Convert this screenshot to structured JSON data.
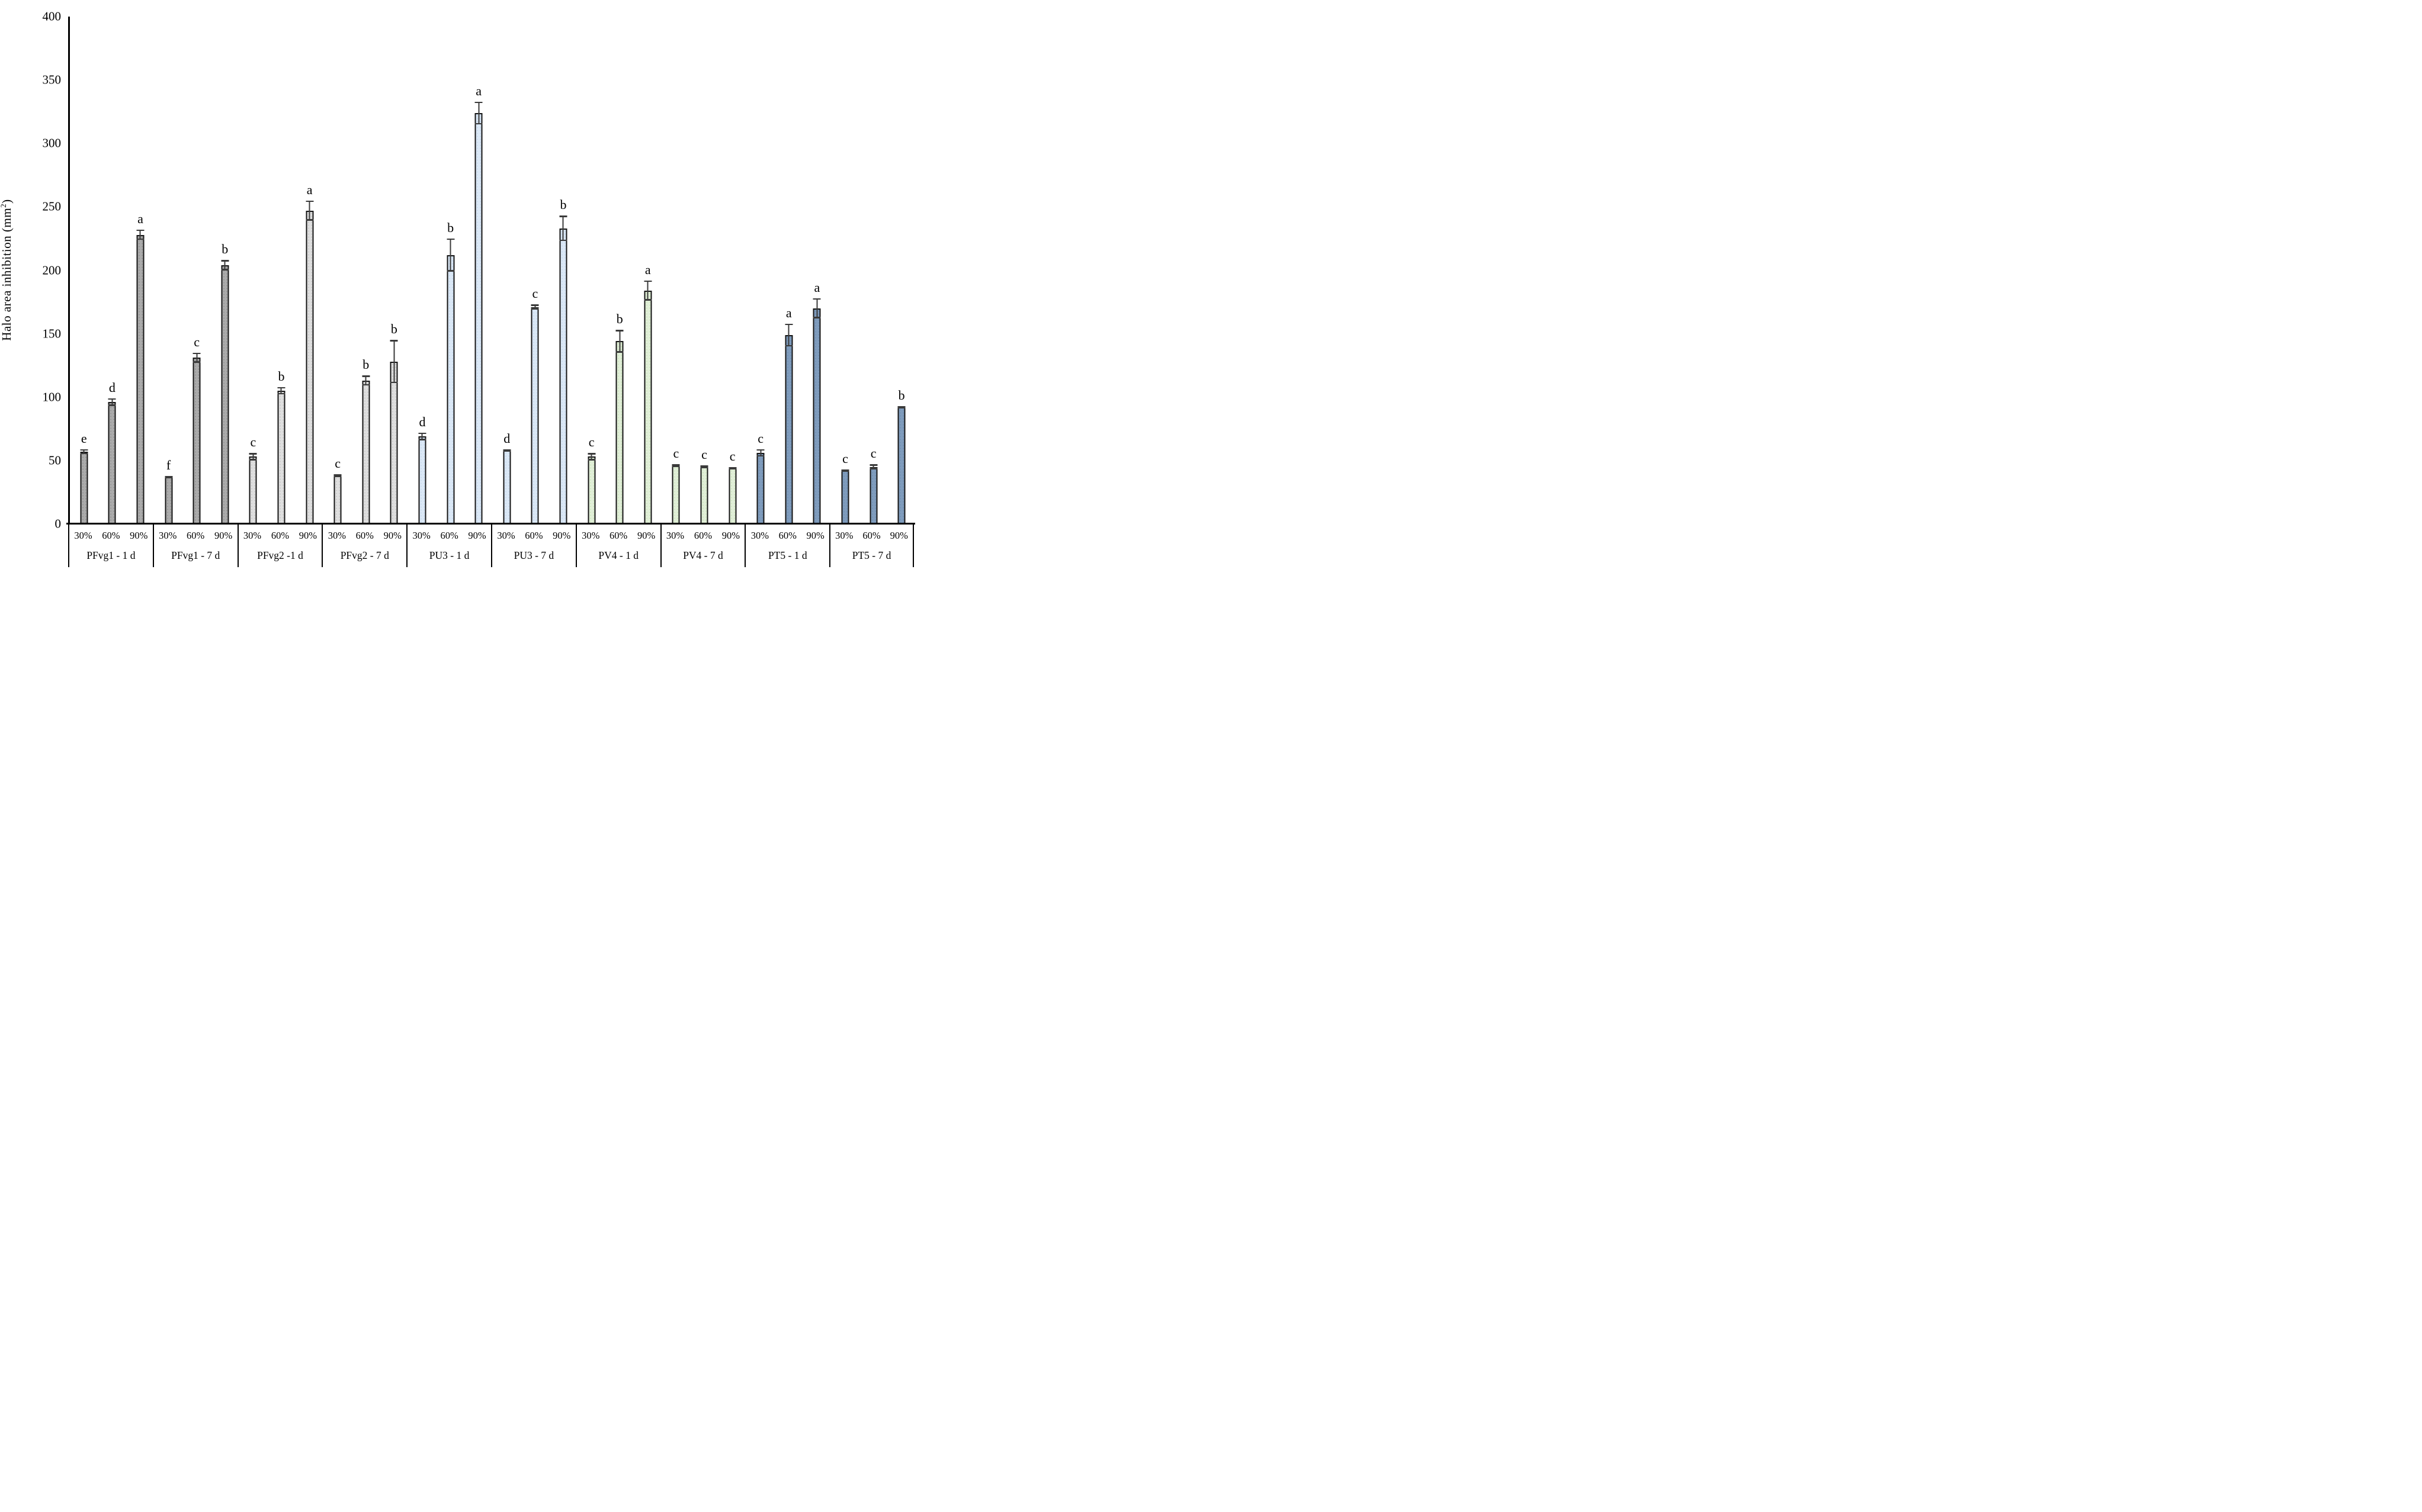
{
  "chart_data": {
    "type": "bar",
    "title": "",
    "xlabel": "",
    "ylabel": "Halo area inhibition (mm²)",
    "ylim": [
      0,
      400
    ],
    "yticks": [
      0,
      50,
      100,
      150,
      200,
      250,
      300,
      350,
      400
    ],
    "grid": false,
    "legend_position": "none",
    "concentration_labels": [
      "30%",
      "60%",
      "90%"
    ],
    "groups": [
      {
        "label": "PFvg1 - 1 d",
        "family": "PFvg1",
        "bars": [
          {
            "concentration": "30%",
            "value": 57,
            "error": 2,
            "letter": "e"
          },
          {
            "concentration": "60%",
            "value": 96,
            "error": 3,
            "letter": "d"
          },
          {
            "concentration": "90%",
            "value": 228,
            "error": 4,
            "letter": "a"
          }
        ]
      },
      {
        "label": "PFvg1 - 7 d",
        "family": "PFvg1",
        "bars": [
          {
            "concentration": "30%",
            "value": 37,
            "error": 1,
            "letter": "f"
          },
          {
            "concentration": "60%",
            "value": 131,
            "error": 4,
            "letter": "c"
          },
          {
            "concentration": "90%",
            "value": 204,
            "error": 4,
            "letter": "b"
          }
        ]
      },
      {
        "label": "PFvg2 -1 d",
        "family": "PFvg2",
        "bars": [
          {
            "concentration": "30%",
            "value": 53,
            "error": 3,
            "letter": "c"
          },
          {
            "concentration": "60%",
            "value": 105,
            "error": 3,
            "letter": "b"
          },
          {
            "concentration": "90%",
            "value": 247,
            "error": 8,
            "letter": "a"
          }
        ]
      },
      {
        "label": "PFvg2 - 7 d",
        "family": "PFvg2",
        "bars": [
          {
            "concentration": "30%",
            "value": 38,
            "error": 1,
            "letter": "c"
          },
          {
            "concentration": "60%",
            "value": 113,
            "error": 4,
            "letter": "b"
          },
          {
            "concentration": "90%",
            "value": 128,
            "error": 17,
            "letter": "b"
          }
        ]
      },
      {
        "label": "PU3 - 1 d",
        "family": "PU3",
        "bars": [
          {
            "concentration": "30%",
            "value": 69,
            "error": 3,
            "letter": "d"
          },
          {
            "concentration": "60%",
            "value": 212,
            "error": 13,
            "letter": "b"
          },
          {
            "concentration": "90%",
            "value": 324,
            "error": 9,
            "letter": "a"
          }
        ]
      },
      {
        "label": "PU3 - 7 d",
        "family": "PU3",
        "bars": [
          {
            "concentration": "30%",
            "value": 58,
            "error": 1,
            "letter": "d"
          },
          {
            "concentration": "60%",
            "value": 171,
            "error": 2,
            "letter": "c"
          },
          {
            "concentration": "90%",
            "value": 233,
            "error": 10,
            "letter": "b"
          }
        ]
      },
      {
        "label": "PV4 - 1 d",
        "family": "PV4",
        "bars": [
          {
            "concentration": "30%",
            "value": 53,
            "error": 3,
            "letter": "c"
          },
          {
            "concentration": "60%",
            "value": 144,
            "error": 9,
            "letter": "b"
          },
          {
            "concentration": "90%",
            "value": 184,
            "error": 8,
            "letter": "a"
          }
        ]
      },
      {
        "label": "PV4 - 7 d",
        "family": "PV4",
        "bars": [
          {
            "concentration": "30%",
            "value": 46,
            "error": 1,
            "letter": "c"
          },
          {
            "concentration": "60%",
            "value": 45,
            "error": 1,
            "letter": "c"
          },
          {
            "concentration": "90%",
            "value": 44,
            "error": 1,
            "letter": "c"
          }
        ]
      },
      {
        "label": "PT5 - 1 d",
        "family": "PT5",
        "bars": [
          {
            "concentration": "30%",
            "value": 56,
            "error": 3,
            "letter": "c"
          },
          {
            "concentration": "60%",
            "value": 149,
            "error": 9,
            "letter": "a"
          },
          {
            "concentration": "90%",
            "value": 170,
            "error": 8,
            "letter": "a"
          }
        ]
      },
      {
        "label": "PT5 - 7 d",
        "family": "PT5",
        "bars": [
          {
            "concentration": "30%",
            "value": 42,
            "error": 1,
            "letter": "c"
          },
          {
            "concentration": "60%",
            "value": 45,
            "error": 2,
            "letter": "c"
          },
          {
            "concentration": "90%",
            "value": 92,
            "error": 1,
            "letter": "b"
          }
        ]
      }
    ],
    "family_colors": {
      "PFvg1": {
        "fill": "#ababab",
        "dot": "#939393",
        "border": "#141414"
      },
      "PFvg2": {
        "fill": "#dfdfdf",
        "dot": "#c9c9c9",
        "border": "#141414"
      },
      "PU3": {
        "fill": "#dbe8f6",
        "dot": "#c9dbee",
        "border": "#141414"
      },
      "PV4": {
        "fill": "#e1efd8",
        "dot": "#cfe4c1",
        "border": "#141414"
      },
      "PT5": {
        "fill": "#7f9cbd",
        "dot": "#7390b1",
        "border": "#141414"
      }
    },
    "axis_color": "#000000"
  }
}
